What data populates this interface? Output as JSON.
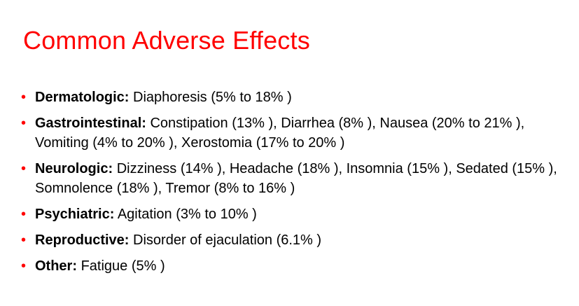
{
  "slide": {
    "title": "Common Adverse Effects",
    "bullet_symbol": "•",
    "colors": {
      "title": "#ff0000",
      "bullet": "#ff0000",
      "text": "#000000"
    },
    "items": [
      {
        "label": "Dermatologic:",
        "text": "Diaphoresis (5% to 18% )"
      },
      {
        "label": "Gastrointestinal:",
        "text": "Constipation (13% ), Diarrhea (8% ), Nausea (20% to 21% ), Vomiting (4% to 20% ), Xerostomia (17% to 20% )"
      },
      {
        "label": "Neurologic:",
        "text": "Dizziness (14% ), Headache (18% ), Insomnia (15% ), Sedated (15% ), Somnolence (18% ), Tremor (8% to 16% )"
      },
      {
        "label": "Psychiatric:",
        "text": "Agitation (3% to 10% )"
      },
      {
        "label": "Reproductive:",
        "text": "Disorder of ejaculation (6.1% )"
      },
      {
        "label": "Other:",
        "text": "Fatigue (5% )"
      }
    ]
  }
}
